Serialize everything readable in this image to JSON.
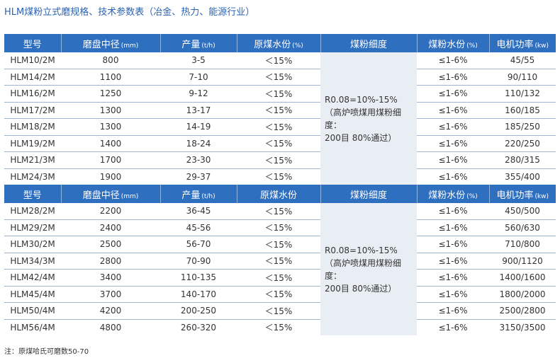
{
  "title": "HLM煤粉立式磨规格、技术参数表（冶金、热力、能源行业）",
  "header1": {
    "model": "型号",
    "disc": "磨盘中径",
    "disc_unit": "(mm)",
    "output": "产量",
    "output_unit": "(t/h)",
    "moisture": "原煤水份",
    "moisture_unit": "(%)",
    "fineness": "煤粉细度",
    "coal_moisture": "煤粉水份",
    "coal_moisture_unit": "(%)",
    "power": "电机功率",
    "power_unit": "(kw)"
  },
  "header2": {
    "model": "型号",
    "disc": "磨盘中径",
    "disc_unit": "(mm)",
    "output": "产量",
    "output_unit": "(t/h)",
    "moisture": "原煤水份",
    "fineness": "煤粉细度",
    "coal_moisture": "煤粉水份",
    "coal_moisture_unit": "(%)",
    "power": "电机功率",
    "power_unit": "(kw)"
  },
  "group1": {
    "fineness_line1": "R0.08=10%-15%",
    "fineness_line2": "（高炉喷煤用煤粉细度：",
    "fineness_line3": "200目 80%通过）",
    "rows": [
      {
        "model": "HLM10/2M",
        "disc": "800",
        "output": "3-5",
        "moisture": "＜15%",
        "coal_moisture": "≤1-6%",
        "power": "45/55"
      },
      {
        "model": "HLM14/2M",
        "disc": "1100",
        "output": "7-10",
        "moisture": "＜15%",
        "coal_moisture": "≤1-6%",
        "power": "90/110"
      },
      {
        "model": "HLM16/2M",
        "disc": "1250",
        "output": "9-12",
        "moisture": "＜15%",
        "coal_moisture": "≤1-6%",
        "power": "110/132"
      },
      {
        "model": "HLM17/2M",
        "disc": "1300",
        "output": "13-17",
        "moisture": "＜15%",
        "coal_moisture": "≤1-6%",
        "power": "160/185"
      },
      {
        "model": "HLM18/2M",
        "disc": "1300",
        "output": "14-19",
        "moisture": "＜15%",
        "coal_moisture": "≤1-6%",
        "power": "185/250"
      },
      {
        "model": "HLM19/2M",
        "disc": "1400",
        "output": "18-24",
        "moisture": "＜15%",
        "coal_moisture": "≤1-6%",
        "power": "220/250"
      },
      {
        "model": "HLM21/3M",
        "disc": "1700",
        "output": "23-30",
        "moisture": "＜15%",
        "coal_moisture": "≤1-6%",
        "power": "280/315"
      },
      {
        "model": "HLM24/3M",
        "disc": "1900",
        "output": "29-37",
        "moisture": "＜15%",
        "coal_moisture": "≤1-6%",
        "power": "355/400"
      }
    ]
  },
  "group2": {
    "fineness_line1": "R0.08=10%-15%",
    "fineness_line2": "（高炉喷煤用煤粉细度：",
    "fineness_line3": "200目 80%通过）",
    "rows": [
      {
        "model": "HLM28/2M",
        "disc": "2200",
        "output": "36-45",
        "moisture": "＜15%",
        "coal_moisture": "≤1-6%",
        "power": "450/500"
      },
      {
        "model": "HLM29/2M",
        "disc": "2400",
        "output": "45-56",
        "moisture": "＜15%",
        "coal_moisture": "≤1-6%",
        "power": "560/630"
      },
      {
        "model": "HLM30/2M",
        "disc": "2500",
        "output": "56-70",
        "moisture": "＜15%",
        "coal_moisture": "≤1-6%",
        "power": "710/800"
      },
      {
        "model": "HLM34/3M",
        "disc": "2800",
        "output": "70-90",
        "moisture": "＜15%",
        "coal_moisture": "≤1-6%",
        "power": "900/1120"
      },
      {
        "model": "HLM42/4M",
        "disc": "3400",
        "output": "110-135",
        "moisture": "＜15%",
        "coal_moisture": "≤1-6%",
        "power": "1400/1600"
      },
      {
        "model": "HLM45/4M",
        "disc": "3700",
        "output": "140-170",
        "moisture": "＜15%",
        "coal_moisture": "≤1-6%",
        "power": "1800/2000"
      },
      {
        "model": "HLM50/4M",
        "disc": "4200",
        "output": "200-250",
        "moisture": "＜15%",
        "coal_moisture": "≤1-6%",
        "power": "2500/2800"
      },
      {
        "model": "HLM56/4M",
        "disc": "4800",
        "output": "260-320",
        "moisture": "＜15%",
        "coal_moisture": "≤1-6%",
        "power": "3150/3500"
      }
    ]
  },
  "note": "注：原煤哈氏可磨数50-70",
  "colors": {
    "header_bg": "#2f6fc0",
    "title": "#2a63b3",
    "merged_cell_bg": "#e9eef5",
    "row_border": "#9fb4cf"
  }
}
